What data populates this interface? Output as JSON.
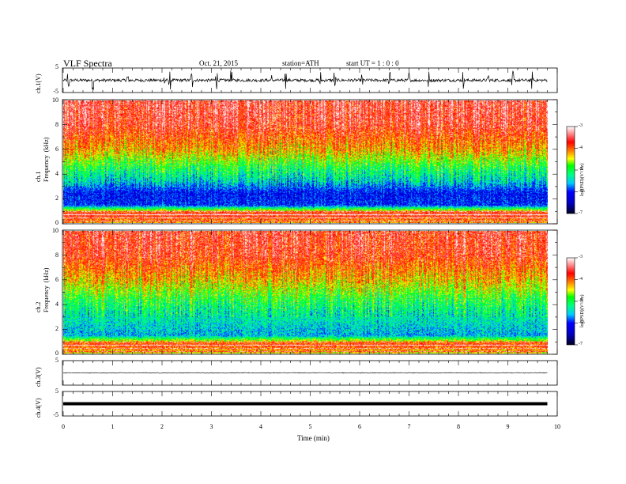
{
  "header": {
    "title": "VLF  Spectra",
    "date": "Oct. 21, 2015",
    "station": "station=ATH",
    "start": "start  UT  =   1  : 0  : 0"
  },
  "colors": {
    "spectrum": [
      "#00002a",
      "#000080",
      "#0000ff",
      "#00aaff",
      "#00ffff",
      "#00ff80",
      "#00ff00",
      "#ffff00",
      "#ff8000",
      "#ff0000",
      "#ffb0b0",
      "#ffffff"
    ]
  },
  "chart_data": [
    {
      "type": "line",
      "name": "ch1-waveform",
      "ylabel": "ch.1(V)",
      "ylim": [
        -5,
        5
      ],
      "yticks": [
        "5",
        "-5"
      ],
      "xlim": [
        0,
        10
      ],
      "x_extent_min": 9.8,
      "baseline": 0,
      "noise_amplitude": 0.6,
      "spikes_min": [
        0.1,
        0.6,
        1.3,
        2.05,
        2.15,
        2.6,
        3.1,
        3.4,
        4.2,
        4.5,
        5.2,
        5.5,
        6.05,
        6.6,
        7.0,
        7.4,
        8.1,
        8.6,
        9.1,
        9.5
      ]
    },
    {
      "type": "heatmap",
      "name": "ch1-spectrogram",
      "ylabel": "ch.1\nFrequency  (kHz)",
      "ylim": [
        0,
        10
      ],
      "yticks": [
        "0",
        "2",
        "4",
        "6",
        "8",
        "10"
      ],
      "xlim": [
        0,
        10
      ],
      "colorbar": {
        "label": "log(PSD)(V²/Hz)",
        "range": [
          -7,
          -3
        ],
        "ticks": [
          "-3",
          "-4",
          "-5",
          "-6",
          "-7"
        ]
      },
      "log_psd_profile": [
        {
          "f_khz": 0.3,
          "value": -4.0
        },
        {
          "f_khz": 0.8,
          "value": -3.6
        },
        {
          "f_khz": 1.5,
          "value": -6.0
        },
        {
          "f_khz": 2.5,
          "value": -6.1
        },
        {
          "f_khz": 3.5,
          "value": -5.4
        },
        {
          "f_khz": 4.5,
          "value": -5.0
        },
        {
          "f_khz": 6.0,
          "value": -4.2
        },
        {
          "f_khz": 8.0,
          "value": -3.6
        },
        {
          "f_khz": 10.0,
          "value": -3.5
        }
      ]
    },
    {
      "type": "heatmap",
      "name": "ch2-spectrogram",
      "ylabel": "ch.2\nFrequency  (kHz)",
      "ylim": [
        0,
        10
      ],
      "yticks": [
        "0",
        "2",
        "4",
        "6",
        "8",
        "10"
      ],
      "xlim": [
        0,
        10
      ],
      "colorbar": {
        "label": "log(PSD)(V²/Hz)",
        "range": [
          -7,
          -3
        ],
        "ticks": [
          "-3",
          "-4",
          "-5",
          "-6",
          "-7"
        ]
      },
      "log_psd_profile": [
        {
          "f_khz": 0.3,
          "value": -4.2
        },
        {
          "f_khz": 0.8,
          "value": -3.8
        },
        {
          "f_khz": 1.5,
          "value": -5.6
        },
        {
          "f_khz": 2.5,
          "value": -5.4
        },
        {
          "f_khz": 3.5,
          "value": -5.2
        },
        {
          "f_khz": 4.5,
          "value": -4.9
        },
        {
          "f_khz": 6.0,
          "value": -4.3
        },
        {
          "f_khz": 8.0,
          "value": -3.7
        },
        {
          "f_khz": 10.0,
          "value": -3.6
        }
      ]
    },
    {
      "type": "line",
      "name": "ch3-waveform",
      "ylabel": "ch.3(V)",
      "ylim": [
        -5,
        5
      ],
      "yticks": [
        "5",
        "-5"
      ],
      "xlim": [
        0,
        10
      ],
      "x_extent_min": 9.8,
      "baseline": 0,
      "noise_amplitude": 0.15
    },
    {
      "type": "line",
      "name": "ch4-waveform",
      "ylabel": "ch.4(V)",
      "ylim": [
        -5,
        5
      ],
      "yticks": [
        "5",
        "-5"
      ],
      "xlim": [
        0,
        10
      ],
      "x_extent_min": 9.8,
      "baseline": 0,
      "noise_amplitude": 0.0
    }
  ],
  "xaxis": {
    "label": "Time  (min)",
    "ticks": [
      "0",
      "1",
      "2",
      "3",
      "4",
      "5",
      "6",
      "7",
      "8",
      "9",
      "10"
    ]
  }
}
